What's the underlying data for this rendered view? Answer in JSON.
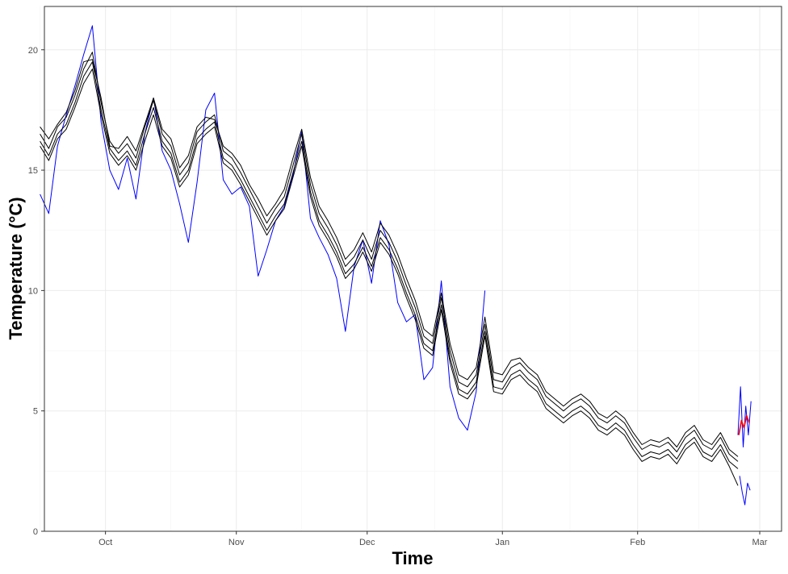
{
  "chart_data": {
    "type": "line",
    "xlabel": "Time",
    "ylabel": "Temperature (°C)",
    "x_ticks": [
      {
        "label": "Oct",
        "day": 15
      },
      {
        "label": "Nov",
        "day": 45
      },
      {
        "label": "Dec",
        "day": 75
      },
      {
        "label": "Jan",
        "day": 106
      },
      {
        "label": "Feb",
        "day": 137
      },
      {
        "label": "Mar",
        "day": 165
      }
    ],
    "xlim": [
      1,
      170
    ],
    "y_ticks": [
      0,
      5,
      10,
      15,
      20
    ],
    "ylim": [
      0,
      21.8
    ],
    "grid": true,
    "colors": {
      "black": "#000000",
      "blue": "#0000ff",
      "red": "#ff0000"
    },
    "series": [
      {
        "color": "black",
        "x": [
          0,
          2,
          4,
          6,
          8,
          10,
          12,
          14,
          16,
          18,
          20,
          22,
          24,
          26,
          28,
          30,
          32,
          34,
          36,
          38,
          40,
          42,
          44,
          46,
          48,
          50,
          52,
          54,
          56,
          58,
          60,
          62,
          64,
          66,
          68,
          70,
          72,
          74,
          76,
          78,
          80,
          82,
          84,
          86,
          88,
          90,
          92,
          94,
          96,
          98,
          100,
          102,
          104,
          106,
          108,
          110,
          112,
          114,
          116,
          118,
          120,
          122,
          124,
          126,
          128,
          130,
          132,
          134,
          136,
          138,
          140,
          142,
          144,
          146,
          148,
          150,
          152,
          154,
          156,
          158,
          160
        ],
        "y": [
          16.5,
          15.9,
          16.8,
          17.2,
          18.1,
          19.2,
          19.9,
          17.8,
          16.2,
          15.7,
          16.1,
          15.5,
          16.8,
          17.9,
          16.5,
          16.0,
          14.8,
          15.3,
          16.6,
          17.0,
          17.3,
          15.8,
          15.5,
          14.9,
          14.2,
          13.5,
          12.8,
          13.4,
          13.9,
          15.2,
          16.5,
          14.4,
          13.2,
          12.6,
          11.9,
          11.0,
          11.4,
          12.1,
          11.3,
          12.5,
          12.0,
          11.2,
          10.2,
          9.3,
          8.1,
          7.8,
          9.7,
          7.5,
          6.2,
          6.0,
          6.5,
          8.6,
          6.3,
          6.2,
          6.8,
          7.0,
          6.6,
          6.3,
          5.6,
          5.3,
          5.0,
          5.3,
          5.5,
          5.2,
          4.7,
          4.5,
          4.8,
          4.5,
          3.9,
          3.4,
          3.6,
          3.5,
          3.7,
          3.3,
          3.9,
          4.2,
          3.6,
          3.4,
          3.9,
          3.2,
          2.9
        ]
      },
      {
        "color": "black",
        "x": [
          0,
          2,
          4,
          6,
          8,
          10,
          12,
          14,
          16,
          18,
          20,
          22,
          24,
          26,
          28,
          30,
          32,
          34,
          36,
          38,
          40,
          42,
          44,
          46,
          48,
          50,
          52,
          54,
          56,
          58,
          60,
          62,
          64,
          66,
          68,
          70,
          72,
          74,
          76,
          78,
          80,
          82,
          84,
          86,
          88,
          90,
          92,
          94,
          96,
          98,
          100,
          102,
          104,
          106,
          108,
          110,
          112,
          114,
          116,
          118,
          120,
          122,
          124,
          126,
          128,
          130,
          132,
          134,
          136,
          138,
          140,
          142,
          144,
          146,
          148,
          150,
          152,
          154,
          156,
          158,
          160
        ],
        "y": [
          16.8,
          16.3,
          16.9,
          17.4,
          18.3,
          19.5,
          19.6,
          18.0,
          16.0,
          15.9,
          16.4,
          15.8,
          16.9,
          18.0,
          16.7,
          16.3,
          15.1,
          15.6,
          16.8,
          17.2,
          17.1,
          16.0,
          15.7,
          15.2,
          14.4,
          13.8,
          13.1,
          13.6,
          14.2,
          15.5,
          16.7,
          14.7,
          13.5,
          12.9,
          12.2,
          11.3,
          11.7,
          12.4,
          11.6,
          12.8,
          12.3,
          11.5,
          10.5,
          9.6,
          8.4,
          8.1,
          9.9,
          7.8,
          6.5,
          6.3,
          6.8,
          8.9,
          6.6,
          6.5,
          7.1,
          7.2,
          6.8,
          6.5,
          5.8,
          5.5,
          5.2,
          5.5,
          5.7,
          5.4,
          4.9,
          4.7,
          5.0,
          4.7,
          4.1,
          3.6,
          3.8,
          3.7,
          3.9,
          3.5,
          4.1,
          4.4,
          3.8,
          3.6,
          4.1,
          3.4,
          3.1
        ]
      },
      {
        "color": "black",
        "x": [
          0,
          2,
          4,
          6,
          8,
          10,
          12,
          14,
          16,
          18,
          20,
          22,
          24,
          26,
          28,
          30,
          32,
          34,
          36,
          38,
          40,
          42,
          44,
          46,
          48,
          50,
          52,
          54,
          56,
          58,
          60,
          62,
          64,
          66,
          68,
          70,
          72,
          74,
          76,
          78,
          80,
          82,
          84,
          86,
          88,
          90,
          92,
          94,
          96,
          98,
          100,
          102,
          104,
          106,
          108,
          110,
          112,
          114,
          116,
          118,
          120,
          122,
          124,
          126,
          128,
          130,
          132,
          134,
          136,
          138,
          140,
          142,
          144,
          146,
          148,
          150,
          152,
          154,
          156,
          158,
          160
        ],
        "y": [
          16.2,
          15.6,
          16.5,
          16.9,
          17.8,
          18.9,
          19.5,
          17.5,
          15.9,
          15.4,
          15.8,
          15.2,
          16.5,
          17.6,
          16.2,
          15.7,
          14.5,
          15.0,
          16.3,
          16.7,
          17.0,
          15.5,
          15.2,
          14.6,
          13.9,
          13.2,
          12.5,
          13.1,
          13.6,
          14.9,
          16.2,
          14.1,
          12.9,
          12.3,
          11.6,
          10.7,
          11.1,
          11.8,
          11.0,
          12.2,
          11.7,
          10.9,
          9.9,
          9.0,
          7.8,
          7.5,
          9.4,
          7.2,
          5.9,
          5.7,
          6.2,
          8.3,
          6.0,
          5.9,
          6.5,
          6.7,
          6.3,
          6.0,
          5.3,
          5.0,
          4.7,
          5.0,
          5.2,
          4.9,
          4.4,
          4.2,
          4.5,
          4.2,
          3.6,
          3.1,
          3.3,
          3.2,
          3.4,
          3.0,
          3.6,
          3.9,
          3.3,
          3.1,
          3.6,
          2.9,
          2.6
        ]
      },
      {
        "color": "black",
        "x": [
          0,
          2,
          4,
          6,
          8,
          10,
          12,
          14,
          16,
          18,
          20,
          22,
          24,
          26,
          28,
          30,
          32,
          34,
          36,
          38,
          40,
          42,
          44,
          46,
          48,
          50,
          52,
          54,
          56,
          58,
          60,
          62,
          64,
          66,
          68,
          70,
          72,
          74,
          76,
          78,
          80,
          82,
          84,
          86,
          88,
          90,
          92,
          94,
          96,
          98,
          100,
          102,
          104,
          106,
          108,
          110,
          112,
          114,
          116,
          118,
          120,
          122,
          124,
          126,
          128,
          130,
          132,
          134,
          136,
          138,
          140,
          142,
          144,
          146,
          148,
          150,
          152,
          154,
          156,
          158,
          160
        ],
        "y": [
          16.0,
          15.4,
          16.3,
          16.7,
          17.6,
          18.6,
          19.2,
          17.3,
          15.7,
          15.2,
          15.6,
          15.0,
          16.2,
          17.3,
          16.0,
          15.5,
          14.3,
          14.8,
          16.1,
          16.5,
          16.8,
          15.3,
          15.0,
          14.4,
          13.7,
          13.0,
          12.3,
          12.9,
          13.4,
          14.7,
          16.0,
          13.9,
          12.7,
          12.1,
          11.4,
          10.5,
          10.9,
          11.6,
          10.8,
          12.0,
          11.5,
          10.7,
          9.7,
          8.8,
          7.6,
          7.3,
          9.2,
          7.0,
          5.7,
          5.5,
          6.0,
          8.1,
          5.8,
          5.7,
          6.3,
          6.5,
          6.1,
          5.8,
          5.1,
          4.8,
          4.5,
          4.8,
          5.0,
          4.7,
          4.2,
          4.0,
          4.3,
          4.0,
          3.4,
          2.9,
          3.1,
          3.0,
          3.2,
          2.8,
          3.4,
          3.7,
          3.1,
          2.9,
          3.4,
          2.7,
          1.9
        ]
      },
      {
        "color": "blue",
        "x": [
          0,
          2,
          4,
          6,
          8,
          10,
          12,
          14,
          16,
          18,
          20,
          22,
          24,
          26,
          28,
          30,
          32,
          34,
          36,
          38,
          40,
          42,
          44,
          46,
          48,
          50,
          52,
          54,
          56,
          58,
          60,
          62,
          64,
          66,
          68,
          70,
          72,
          74,
          76,
          78,
          80,
          82,
          84,
          86,
          88,
          90,
          92,
          94,
          96,
          98,
          100,
          102
        ],
        "y": [
          14.0,
          13.2,
          16.0,
          17.3,
          18.5,
          19.8,
          21.0,
          17.0,
          15.0,
          14.2,
          15.5,
          13.8,
          16.5,
          18.0,
          15.8,
          15.0,
          13.6,
          12.0,
          14.5,
          17.5,
          18.2,
          14.6,
          14.0,
          14.3,
          13.5,
          10.6,
          11.7,
          12.9,
          13.5,
          14.8,
          16.6,
          13.0,
          12.2,
          11.5,
          10.5,
          8.3,
          11.0,
          12.1,
          10.3,
          12.9,
          11.9,
          9.5,
          8.7,
          9.0,
          6.3,
          6.8,
          10.4,
          6.0,
          4.7,
          4.2,
          5.8,
          10.0
        ]
      },
      {
        "color": "blue",
        "x": [
          160,
          160.6,
          161.2,
          161.8,
          162.4,
          163.0
        ],
        "y": [
          4.0,
          6.0,
          3.5,
          5.2,
          4.0,
          5.4
        ]
      },
      {
        "color": "blue",
        "x": [
          160.4,
          161.0,
          161.6,
          162.2,
          162.8
        ],
        "y": [
          2.3,
          1.6,
          1.1,
          2.0,
          1.7
        ]
      },
      {
        "color": "red",
        "x": [
          160.2,
          160.8,
          161.4,
          162.0,
          162.6
        ],
        "y": [
          4.0,
          4.6,
          4.3,
          4.8,
          4.5
        ]
      }
    ]
  }
}
